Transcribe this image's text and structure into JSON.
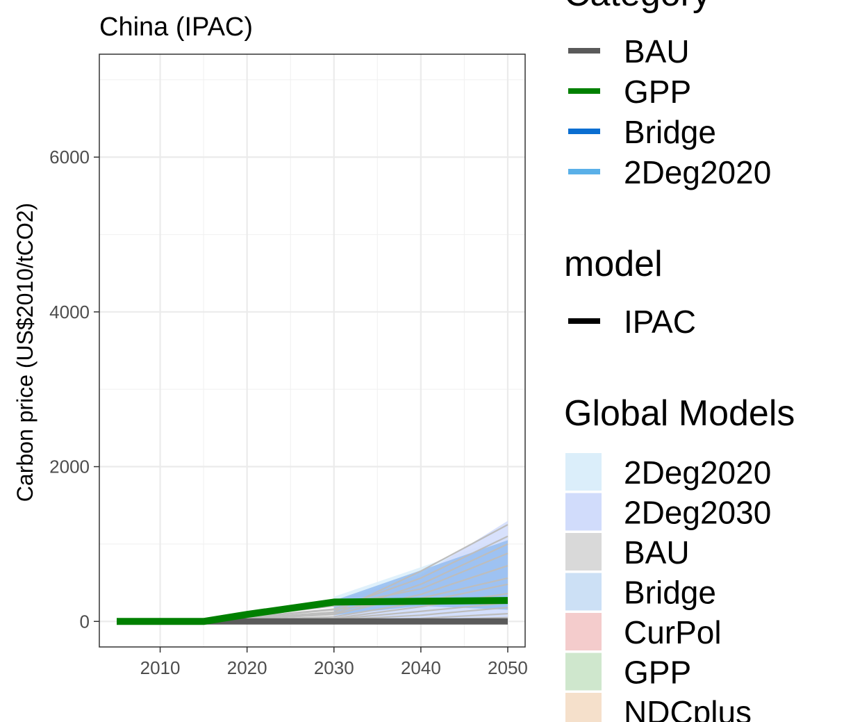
{
  "chart_data": {
    "type": "line",
    "title": "China (IPAC)",
    "ylabel": "Carbon price (US$2010/tCO2)",
    "xlabel": "",
    "xlim": [
      2003,
      2052
    ],
    "ylim": [
      -330,
      7330
    ],
    "x_ticks": [
      2010,
      2020,
      2030,
      2040,
      2050
    ],
    "y_ticks": [
      0,
      2000,
      4000,
      6000
    ],
    "grid": true,
    "legend_position": "right",
    "series": [
      {
        "name": "BAU",
        "color": "#5a5a5a",
        "x": [
          2005,
          2010,
          2015,
          2020,
          2030,
          2040,
          2050
        ],
        "values": [
          0,
          0,
          0,
          0,
          0,
          0,
          0
        ]
      },
      {
        "name": "GPP",
        "color": "#008000",
        "x": [
          2005,
          2010,
          2015,
          2020,
          2030,
          2040,
          2050
        ],
        "values": [
          0,
          0,
          0,
          90,
          250,
          260,
          270
        ]
      }
    ],
    "global_model_ranges": [
      {
        "name": "2Deg2020",
        "color": "#dbeefa",
        "x": [
          2030,
          2040,
          2050
        ],
        "lower": [
          0,
          0,
          0
        ],
        "upper": [
          320,
          700,
          1100
        ]
      },
      {
        "name": "2Deg2030",
        "color": "#d1dcfb",
        "x": [
          2030,
          2040,
          2050
        ],
        "lower": [
          0,
          0,
          0
        ],
        "upper": [
          260,
          600,
          1300
        ]
      },
      {
        "name": "Bridge",
        "color": "#94bdf0",
        "x": [
          2030,
          2040,
          2050
        ],
        "lower": [
          80,
          200,
          150
        ],
        "upper": [
          270,
          660,
          1050
        ]
      }
    ],
    "global_model_lines": [
      {
        "x": [
          2005,
          2015,
          2030,
          2040,
          2050
        ],
        "values": [
          0,
          0,
          120,
          650,
          1250
        ]
      },
      {
        "x": [
          2005,
          2015,
          2030,
          2040,
          2050
        ],
        "values": [
          0,
          0,
          160,
          560,
          1100
        ]
      },
      {
        "x": [
          2005,
          2015,
          2030,
          2040,
          2050
        ],
        "values": [
          0,
          0,
          100,
          480,
          1000
        ]
      },
      {
        "x": [
          2005,
          2015,
          2030,
          2040,
          2050
        ],
        "values": [
          0,
          0,
          200,
          420,
          880
        ]
      },
      {
        "x": [
          2005,
          2015,
          2030,
          2040,
          2050
        ],
        "values": [
          0,
          0,
          90,
          350,
          720
        ]
      },
      {
        "x": [
          2005,
          2015,
          2030,
          2040,
          2050
        ],
        "values": [
          0,
          0,
          150,
          300,
          560
        ]
      },
      {
        "x": [
          2005,
          2015,
          2030,
          2040,
          2050
        ],
        "values": [
          0,
          0,
          60,
          250,
          480
        ]
      },
      {
        "x": [
          2005,
          2015,
          2030,
          2040,
          2050
        ],
        "values": [
          0,
          0,
          40,
          190,
          360
        ]
      },
      {
        "x": [
          2005,
          2015,
          2030,
          2040,
          2050
        ],
        "values": [
          0,
          0,
          30,
          130,
          240
        ]
      },
      {
        "x": [
          2005,
          2015,
          2030,
          2040,
          2050
        ],
        "values": [
          0,
          0,
          20,
          80,
          180
        ]
      },
      {
        "x": [
          2005,
          2015,
          2030,
          2040,
          2050
        ],
        "values": [
          0,
          0,
          10,
          40,
          100
        ]
      },
      {
        "x": [
          2005,
          2015,
          2030,
          2040,
          2050
        ],
        "values": [
          0,
          0,
          5,
          20,
          50
        ]
      }
    ]
  },
  "legends": {
    "category": {
      "title": "Category",
      "items": [
        {
          "label": "BAU",
          "color": "#5a5a5a"
        },
        {
          "label": "GPP",
          "color": "#008000"
        },
        {
          "label": "Bridge",
          "color": "#0a6ed1"
        },
        {
          "label": "2Deg2020",
          "color": "#5ab0e8"
        }
      ]
    },
    "model": {
      "title": "model",
      "items": [
        {
          "label": "IPAC",
          "color": "#000000"
        }
      ]
    },
    "global_models": {
      "title": "Global Models",
      "items": [
        {
          "label": "2Deg2020",
          "color": "#dbeefa"
        },
        {
          "label": "2Deg2030",
          "color": "#d1dcfb"
        },
        {
          "label": "BAU",
          "color": "#d9d9d9"
        },
        {
          "label": "Bridge",
          "color": "#cce0f5"
        },
        {
          "label": "CurPol",
          "color": "#f4cccc"
        },
        {
          "label": "GPP",
          "color": "#cfe7cd"
        },
        {
          "label": "NDCplus",
          "color": "#f5e0cb"
        }
      ]
    }
  }
}
